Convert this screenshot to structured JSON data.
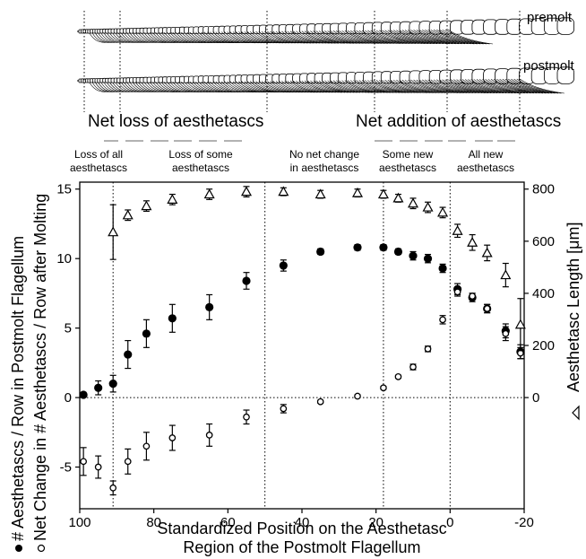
{
  "figure": {
    "schematic_labels": {
      "premolt": "premolt",
      "postmolt": "postmolt"
    },
    "header_left": "Net loss of aesthetascs",
    "header_right": "Net addition of aesthetascs",
    "region_labels": [
      [
        "Loss of all",
        "aesthetascs"
      ],
      [
        "Loss of some",
        "aesthetascs"
      ],
      [
        "No net change",
        "in aesthetascs"
      ],
      [
        "Some new",
        "aesthetascs"
      ],
      [
        "All new",
        "aesthetascs"
      ]
    ]
  },
  "chart_data": {
    "type": "scatter",
    "x_title_lines": [
      "Standardized Position on the Aesthetasc",
      "Region of the Postmolt Flagellum"
    ],
    "y_left_title_lines": [
      "# Aesthetascs / Row in Postmolt Flagellum",
      "Net Change in # Aesthetascs / Row after Molting"
    ],
    "y_right_title": "Aesthetasc Length [μm]",
    "xlim": [
      100,
      -20
    ],
    "x_ticks": [
      100,
      80,
      60,
      40,
      20,
      0,
      -20
    ],
    "ylim_left": [
      -8,
      15.5
    ],
    "y_left_ticks": [
      15,
      10,
      5,
      0,
      -5
    ],
    "ylim_right": [
      -426.67,
      826.67
    ],
    "y_right_ticks": [
      800,
      600,
      400,
      200,
      0
    ],
    "vertical_dividers": [
      91,
      50,
      18,
      0
    ],
    "zero_line_left": 0,
    "series": [
      {
        "name": "# Aesthetascs / Row in Postmolt Flagellum",
        "marker": "filled-circle",
        "axis": "left",
        "points": [
          [
            99,
            0.2,
            0.0
          ],
          [
            95,
            0.7,
            0.5
          ],
          [
            91,
            1.0,
            0.6
          ],
          [
            87,
            3.1,
            1.0
          ],
          [
            82,
            4.6,
            1.0
          ],
          [
            75,
            5.7,
            1.0
          ],
          [
            65,
            6.5,
            0.9
          ],
          [
            55,
            8.4,
            0.6
          ],
          [
            45,
            9.5,
            0.4
          ],
          [
            35,
            10.5,
            0.2
          ],
          [
            25,
            10.8,
            0.2
          ],
          [
            18,
            10.8,
            0.2
          ],
          [
            14,
            10.5,
            0.2
          ],
          [
            10,
            10.2,
            0.3
          ],
          [
            6,
            10.0,
            0.3
          ],
          [
            2,
            9.3,
            0.3
          ],
          [
            -2,
            7.8,
            0.4
          ],
          [
            -6,
            7.2,
            0.3
          ],
          [
            -10,
            6.4,
            0.3
          ],
          [
            -15,
            4.8,
            0.5
          ],
          [
            -19,
            3.3,
            0.5
          ]
        ]
      },
      {
        "name": "Net Change in # Aesthetascs / Row after Molting",
        "marker": "open-circle",
        "axis": "left",
        "points": [
          [
            99,
            -4.6,
            1.0
          ],
          [
            95,
            -5.0,
            0.8
          ],
          [
            91,
            -6.5,
            0.5
          ],
          [
            87,
            -4.6,
            0.9
          ],
          [
            82,
            -3.5,
            1.0
          ],
          [
            75,
            -2.9,
            0.9
          ],
          [
            65,
            -2.7,
            0.8
          ],
          [
            55,
            -1.4,
            0.5
          ],
          [
            45,
            -0.8,
            0.3
          ],
          [
            35,
            -0.3,
            0.1
          ],
          [
            25,
            0.1,
            0.1
          ],
          [
            18,
            0.7,
            0.1
          ],
          [
            14,
            1.5,
            0.1
          ],
          [
            10,
            2.2,
            0.2
          ],
          [
            6,
            3.5,
            0.2
          ],
          [
            2,
            5.6,
            0.3
          ],
          [
            -2,
            7.6,
            0.3
          ],
          [
            -6,
            7.3,
            0.2
          ],
          [
            -10,
            6.4,
            0.3
          ],
          [
            -15,
            4.6,
            0.5
          ],
          [
            -19,
            3.2,
            0.4
          ]
        ]
      },
      {
        "name": "Aesthetasc Length [μm]",
        "marker": "open-triangle",
        "axis": "right",
        "points": [
          [
            91,
            635,
            105
          ],
          [
            87,
            700,
            20
          ],
          [
            82,
            735,
            20
          ],
          [
            75,
            760,
            20
          ],
          [
            65,
            780,
            20
          ],
          [
            55,
            790,
            20
          ],
          [
            45,
            790,
            15
          ],
          [
            35,
            780,
            15
          ],
          [
            25,
            785,
            15
          ],
          [
            18,
            780,
            15
          ],
          [
            14,
            765,
            15
          ],
          [
            10,
            745,
            20
          ],
          [
            6,
            730,
            20
          ],
          [
            2,
            710,
            20
          ],
          [
            -2,
            640,
            25
          ],
          [
            -6,
            595,
            30
          ],
          [
            -10,
            555,
            30
          ],
          [
            -15,
            470,
            45
          ],
          [
            -19,
            280,
            100
          ]
        ]
      }
    ]
  }
}
